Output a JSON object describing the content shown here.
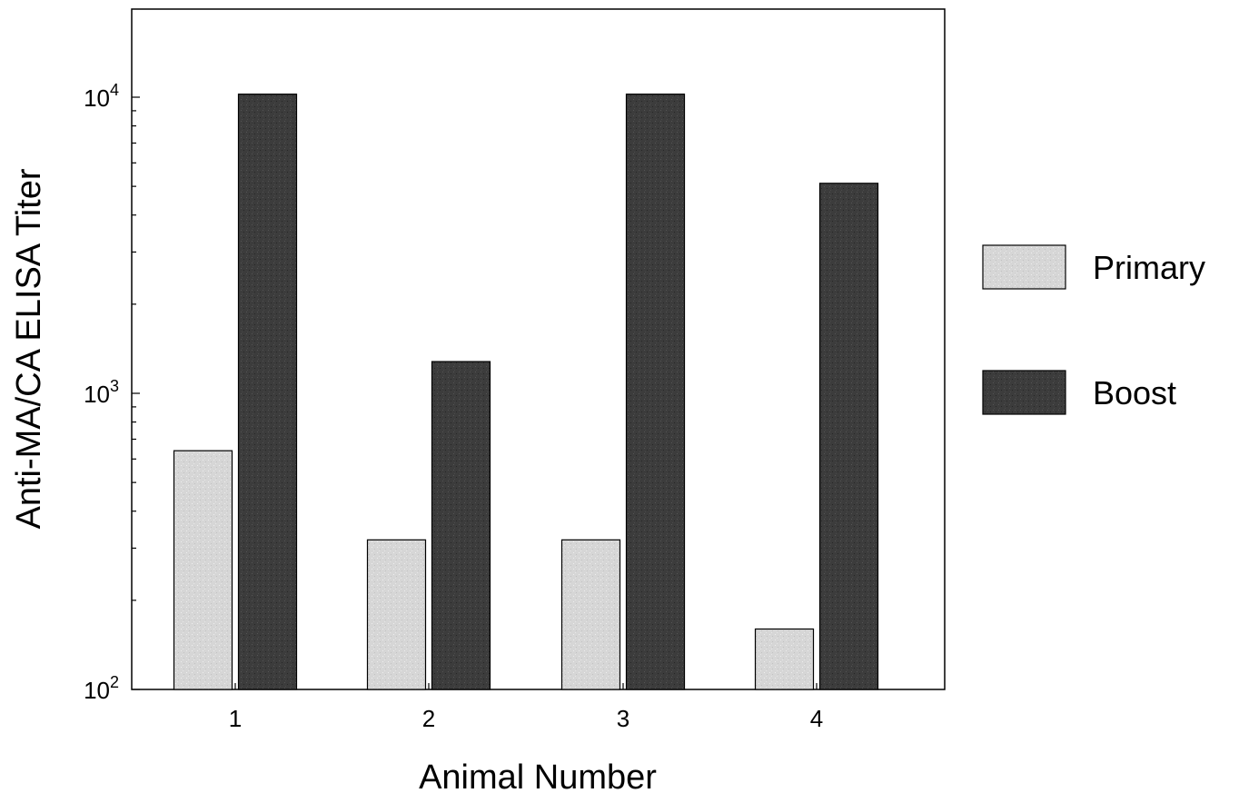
{
  "chart_data": {
    "type": "bar",
    "title": "",
    "xlabel": "Animal Number",
    "ylabel": "Anti-MA/CA ELISA Titer",
    "yscale": "log",
    "ylim": [
      100,
      20000
    ],
    "yticks": [
      {
        "value": 100,
        "base": "10",
        "exp": "2"
      },
      {
        "value": 1000,
        "base": "10",
        "exp": "3"
      },
      {
        "value": 10000,
        "base": "10",
        "exp": "4"
      }
    ],
    "categories": [
      "1",
      "2",
      "3",
      "4"
    ],
    "series": [
      {
        "name": "Primary",
        "color": "#d9d9d9",
        "values": [
          640,
          320,
          320,
          160
        ]
      },
      {
        "name": "Boost",
        "color": "#3a3a3a",
        "values": [
          10240,
          1280,
          10240,
          5120
        ]
      }
    ],
    "legend_position": "right",
    "grid": false
  }
}
